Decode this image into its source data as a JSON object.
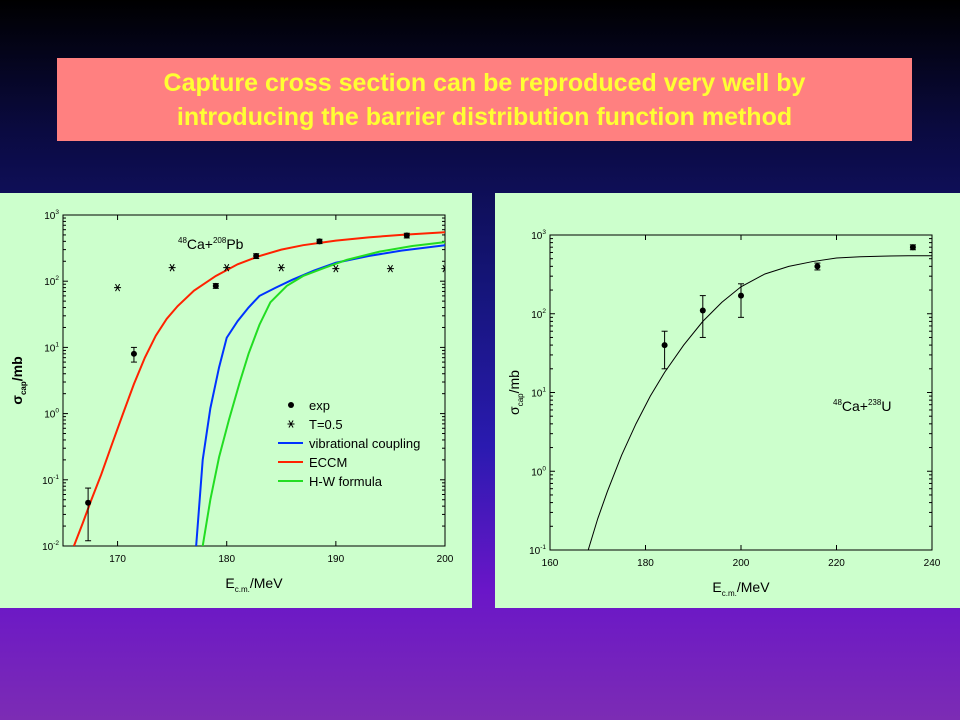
{
  "title_lines": [
    "Capture cross section can be reproduced very well by",
    "introducing the barrier distribution function method"
  ],
  "colors": {
    "title_bg": "#ff8080",
    "title_text": "#ffff33",
    "panel_bg": "#ccffcc",
    "vibrational": "#0033ff",
    "eccm": "#ff2200",
    "hw": "#22dd22"
  },
  "chart_data": [
    {
      "type": "line",
      "reaction": {
        "a_mass": "48",
        "a_sym": "Ca+",
        "b_mass": "208",
        "b_sym": "Pb"
      },
      "xlabel": {
        "main": "E",
        "sub": "c.m.",
        "unit": "/MeV"
      },
      "ylabel": {
        "main": "σ",
        "sub": "cap",
        "unit": "/mb"
      },
      "xlim": [
        165,
        200
      ],
      "ylim_log10": [
        -2,
        3
      ],
      "xticks": [
        170,
        180,
        190,
        200
      ],
      "yticks": [
        {
          "base": "10",
          "exp": "-2"
        },
        {
          "base": "10",
          "exp": "-1"
        },
        {
          "base": "10",
          "exp": "0"
        },
        {
          "base": "10",
          "exp": "1"
        },
        {
          "base": "10",
          "exp": "2"
        },
        {
          "base": "10",
          "exp": "3"
        }
      ],
      "scale": "log-y",
      "legend": [
        "exp",
        "T=0.5",
        "vibrational coupling",
        "ECCM",
        "H-W formula"
      ],
      "exp": [
        {
          "x": 167.3,
          "y": 0.045,
          "ylo": 0.012,
          "yhi": 0.075
        },
        {
          "x": 171.5,
          "y": 8.0,
          "ylo": 6.0,
          "yhi": 10.0
        },
        {
          "x": 179.0,
          "y": 85,
          "ylo": 78,
          "yhi": 92
        },
        {
          "x": 182.7,
          "y": 240,
          "ylo": 220,
          "yhi": 260
        },
        {
          "x": 188.5,
          "y": 400,
          "ylo": 370,
          "yhi": 430
        },
        {
          "x": 196.5,
          "y": 490,
          "ylo": 450,
          "yhi": 530
        }
      ],
      "t05": [
        {
          "x": 170,
          "y": 80
        },
        {
          "x": 175,
          "y": 160
        },
        {
          "x": 180,
          "y": 160
        },
        {
          "x": 185,
          "y": 160
        },
        {
          "x": 190,
          "y": 155
        },
        {
          "x": 195,
          "y": 155
        },
        {
          "x": 200,
          "y": 155
        }
      ],
      "series": [
        {
          "key": "eccm",
          "x": [
            166.0,
            166.8,
            167.6,
            168.5,
            169.5,
            170.5,
            171.5,
            172.5,
            173.5,
            174.5,
            175.5,
            177,
            179,
            181,
            183,
            185,
            187,
            190,
            193,
            196,
            200
          ],
          "y": [
            0.01,
            0.022,
            0.05,
            0.12,
            0.35,
            1.0,
            2.8,
            7,
            15,
            27,
            42,
            72,
            120,
            180,
            240,
            300,
            350,
            410,
            460,
            500,
            550
          ]
        },
        {
          "key": "vibrational",
          "x": [
            177.2,
            177.8,
            178.5,
            179.3,
            180.0,
            181.0,
            182.0,
            183.0,
            184.5,
            186,
            188,
            190,
            193,
            196,
            200
          ],
          "y": [
            0.01,
            0.2,
            1.2,
            5,
            14,
            25,
            40,
            60,
            80,
            105,
            145,
            190,
            240,
            290,
            350
          ]
        },
        {
          "key": "hw",
          "x": [
            177.8,
            178.5,
            179.3,
            180.2,
            181.2,
            182.0,
            183.0,
            184.0,
            185.5,
            187,
            189,
            191,
            194,
            197,
            200
          ],
          "y": [
            0.01,
            0.05,
            0.22,
            0.8,
            3,
            8,
            22,
            48,
            85,
            120,
            160,
            210,
            280,
            340,
            390
          ]
        }
      ]
    },
    {
      "type": "line",
      "reaction": {
        "a_mass": "48",
        "a_sym": "Ca+",
        "b_mass": "238",
        "b_sym": "U"
      },
      "xlabel": {
        "main": "E",
        "sub": "c.m.",
        "unit": "/MeV"
      },
      "ylabel": {
        "main": "σ",
        "sub": "cap",
        "unit": "/mb"
      },
      "xlim": [
        160,
        240
      ],
      "ylim_log10": [
        -1,
        3
      ],
      "xticks": [
        160,
        180,
        200,
        220,
        240
      ],
      "yticks": [
        {
          "base": "10",
          "exp": "-1"
        },
        {
          "base": "10",
          "exp": "0"
        },
        {
          "base": "10",
          "exp": "1"
        },
        {
          "base": "10",
          "exp": "2"
        },
        {
          "base": "10",
          "exp": "3"
        }
      ],
      "scale": "log-y",
      "exp": [
        {
          "x": 184,
          "y": 40,
          "ylo": 20,
          "yhi": 60
        },
        {
          "x": 192,
          "y": 110,
          "ylo": 50,
          "yhi": 170
        },
        {
          "x": 200,
          "y": 170,
          "ylo": 90,
          "yhi": 240
        },
        {
          "x": 216,
          "y": 400,
          "ylo": 360,
          "yhi": 440
        },
        {
          "x": 236,
          "y": 700,
          "ylo": 650,
          "yhi": 750
        }
      ],
      "curve": {
        "x": [
          168,
          170,
          172,
          175,
          178,
          181,
          184,
          188,
          192,
          196,
          200,
          205,
          210,
          215,
          220,
          225,
          230,
          235,
          240
        ],
        "y": [
          0.1,
          0.25,
          0.55,
          1.6,
          4,
          9,
          18,
          40,
          80,
          140,
          220,
          320,
          400,
          460,
          510,
          530,
          540,
          545,
          545
        ]
      }
    }
  ]
}
